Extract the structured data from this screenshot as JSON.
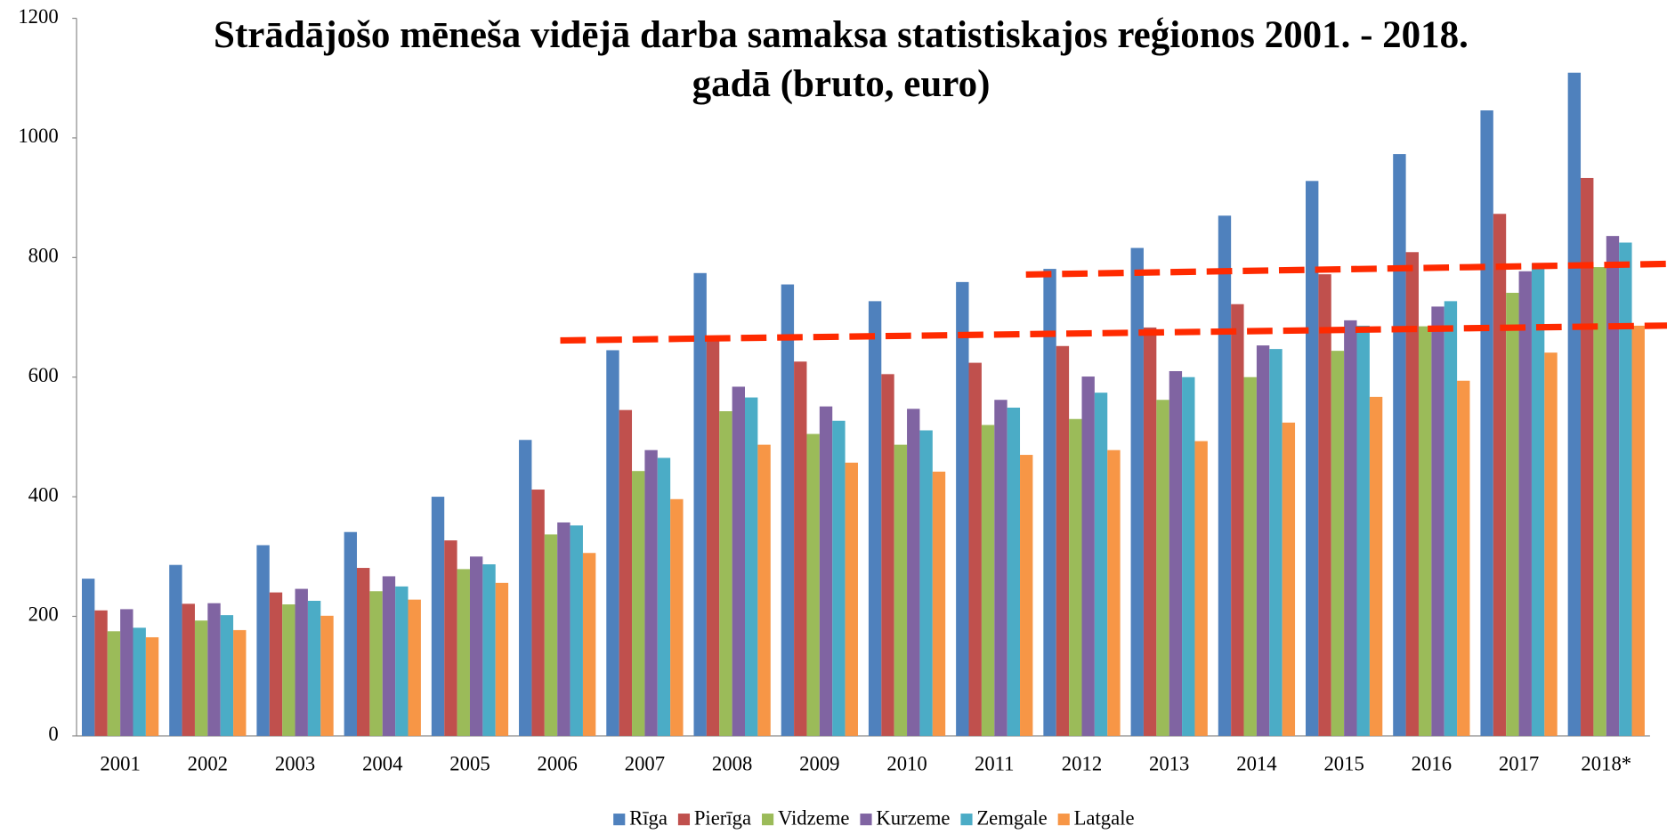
{
  "chart_data": {
    "type": "bar",
    "title": "Strādājošo mēneša vidējā darba samaksa statistiskajos reģionos 2001. - 2018. gadā (bruto, euro)",
    "categories": [
      "2001",
      "2002",
      "2003",
      "2004",
      "2005",
      "2006",
      "2007",
      "2008",
      "2009",
      "2010",
      "2011",
      "2012",
      "2013",
      "2014",
      "2015",
      "2016",
      "2017",
      "2018*"
    ],
    "series": [
      {
        "name": "Rīga",
        "color": "#4f81bd",
        "values": [
          263,
          286,
          319,
          341,
          400,
          495,
          645,
          774,
          755,
          727,
          759,
          781,
          816,
          870,
          928,
          973,
          1046,
          1109
        ]
      },
      {
        "name": "Pierīga",
        "color": "#c0504d",
        "values": [
          210,
          221,
          240,
          281,
          327,
          412,
          545,
          665,
          626,
          605,
          624,
          652,
          683,
          722,
          772,
          809,
          873,
          933
        ]
      },
      {
        "name": "Vidzeme",
        "color": "#9bbb59",
        "values": [
          175,
          193,
          220,
          242,
          279,
          337,
          443,
          543,
          505,
          487,
          520,
          530,
          562,
          600,
          644,
          685,
          741,
          784
        ]
      },
      {
        "name": "Kurzeme",
        "color": "#8064a2",
        "values": [
          212,
          222,
          246,
          267,
          300,
          357,
          478,
          584,
          551,
          547,
          562,
          601,
          610,
          653,
          695,
          718,
          777,
          836
        ]
      },
      {
        "name": "Zemgale",
        "color": "#4bacc6",
        "values": [
          181,
          202,
          226,
          250,
          287,
          352,
          465,
          566,
          527,
          511,
          549,
          574,
          600,
          647,
          686,
          727,
          790,
          825
        ]
      },
      {
        "name": "Latgale",
        "color": "#f79646",
        "values": [
          165,
          177,
          201,
          228,
          256,
          306,
          396,
          487,
          457,
          442,
          470,
          478,
          493,
          524,
          567,
          594,
          641,
          686
        ]
      }
    ],
    "ylim": [
      0,
      1200
    ],
    "yticks": [
      0,
      200,
      400,
      600,
      800,
      1000,
      1200
    ],
    "grid": false,
    "legend": "bottom"
  }
}
